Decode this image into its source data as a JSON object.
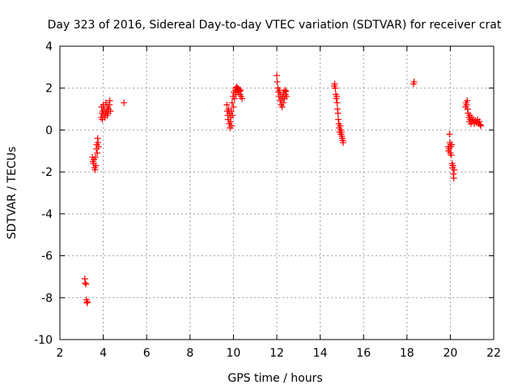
{
  "chart_data": {
    "type": "scatter",
    "title": "Day 323 of 2016, Sidereal Day-to-day VTEC variation (SDTVAR) for receiver crat",
    "xlabel": "GPS time / hours",
    "ylabel": "SDTVAR / TECUs",
    "xlim": [
      2,
      22
    ],
    "ylim": [
      -10,
      4
    ],
    "xticks": [
      2,
      4,
      6,
      8,
      10,
      12,
      14,
      16,
      18,
      20,
      22
    ],
    "yticks": [
      -10,
      -8,
      -6,
      -4,
      -2,
      0,
      2,
      4
    ],
    "grid": true,
    "marker": "+",
    "series": [
      {
        "name": "SDTVAR",
        "color": "#ff0000",
        "points": [
          [
            3.15,
            -7.1
          ],
          [
            3.17,
            -7.3
          ],
          [
            3.2,
            -7.35
          ],
          [
            3.22,
            -8.1
          ],
          [
            3.25,
            -8.25
          ],
          [
            3.27,
            -8.2
          ],
          [
            3.5,
            -1.3
          ],
          [
            3.52,
            -1.5
          ],
          [
            3.55,
            -1.6
          ],
          [
            3.57,
            -1.4
          ],
          [
            3.6,
            -1.8
          ],
          [
            3.62,
            -1.9
          ],
          [
            3.64,
            -1.3
          ],
          [
            3.66,
            -1.7
          ],
          [
            3.68,
            -0.9
          ],
          [
            3.7,
            -0.7
          ],
          [
            3.72,
            -1.1
          ],
          [
            3.74,
            -0.4
          ],
          [
            3.76,
            -0.6
          ],
          [
            3.78,
            -0.8
          ],
          [
            3.9,
            0.6
          ],
          [
            3.92,
            1.1
          ],
          [
            3.94,
            0.8
          ],
          [
            3.96,
            0.5
          ],
          [
            3.98,
            0.9
          ],
          [
            4.0,
            1.2
          ],
          [
            4.02,
            0.7
          ],
          [
            4.05,
            1.0
          ],
          [
            4.08,
            0.6
          ],
          [
            4.1,
            0.8
          ],
          [
            4.12,
            1.3
          ],
          [
            4.15,
            0.9
          ],
          [
            4.18,
            0.7
          ],
          [
            4.2,
            1.1
          ],
          [
            4.22,
            0.8
          ],
          [
            4.25,
            1.0
          ],
          [
            4.28,
            1.2
          ],
          [
            4.3,
            1.4
          ],
          [
            4.33,
            0.9
          ],
          [
            4.95,
            1.3
          ],
          [
            9.7,
            1.2
          ],
          [
            9.72,
            0.9
          ],
          [
            9.74,
            0.7
          ],
          [
            9.76,
            0.5
          ],
          [
            9.78,
            1.0
          ],
          [
            9.8,
            0.3
          ],
          [
            9.82,
            0.8
          ],
          [
            9.84,
            0.1
          ],
          [
            9.86,
            0.4
          ],
          [
            9.88,
            0.6
          ],
          [
            9.9,
            0.9
          ],
          [
            9.92,
            0.2
          ],
          [
            9.94,
            1.3
          ],
          [
            9.96,
            0.7
          ],
          [
            9.98,
            1.6
          ],
          [
            10.0,
            1.1
          ],
          [
            10.02,
            1.8
          ],
          [
            10.05,
            1.5
          ],
          [
            10.08,
            1.9
          ],
          [
            10.1,
            2.0
          ],
          [
            10.12,
            1.7
          ],
          [
            10.15,
            2.05
          ],
          [
            10.18,
            1.9
          ],
          [
            10.2,
            2.0
          ],
          [
            10.22,
            1.8
          ],
          [
            10.25,
            1.95
          ],
          [
            10.28,
            1.85
          ],
          [
            10.3,
            1.7
          ],
          [
            10.33,
            1.9
          ],
          [
            10.36,
            1.6
          ],
          [
            10.4,
            1.5
          ],
          [
            12.0,
            2.6
          ],
          [
            12.02,
            2.3
          ],
          [
            12.05,
            2.0
          ],
          [
            12.08,
            1.8
          ],
          [
            12.1,
            1.6
          ],
          [
            12.12,
            1.9
          ],
          [
            12.15,
            1.4
          ],
          [
            12.18,
            1.7
          ],
          [
            12.2,
            1.2
          ],
          [
            12.22,
            1.5
          ],
          [
            12.25,
            1.1
          ],
          [
            12.28,
            1.6
          ],
          [
            12.3,
            1.3
          ],
          [
            12.32,
            1.8
          ],
          [
            12.35,
            1.5
          ],
          [
            12.38,
            1.9
          ],
          [
            12.4,
            1.7
          ],
          [
            12.42,
            1.85
          ],
          [
            12.45,
            1.6
          ],
          [
            14.65,
            2.1
          ],
          [
            14.67,
            2.2
          ],
          [
            14.7,
            2.0
          ],
          [
            14.72,
            1.7
          ],
          [
            14.74,
            1.5
          ],
          [
            14.76,
            1.6
          ],
          [
            14.78,
            1.3
          ],
          [
            14.8,
            1.0
          ],
          [
            14.82,
            0.8
          ],
          [
            14.84,
            0.5
          ],
          [
            14.86,
            0.3
          ],
          [
            14.88,
            0.1
          ],
          [
            14.9,
            -0.1
          ],
          [
            14.92,
            0.2
          ],
          [
            14.94,
            0.0
          ],
          [
            14.96,
            -0.2
          ],
          [
            14.98,
            -0.1
          ],
          [
            15.0,
            -0.3
          ],
          [
            15.02,
            -0.4
          ],
          [
            15.04,
            -0.5
          ],
          [
            15.06,
            -0.6
          ],
          [
            18.3,
            2.2
          ],
          [
            18.33,
            2.3
          ],
          [
            19.9,
            -0.8
          ],
          [
            19.92,
            -1.0
          ],
          [
            19.94,
            -0.9
          ],
          [
            19.96,
            -0.2
          ],
          [
            19.98,
            -0.6
          ],
          [
            20.0,
            -1.1
          ],
          [
            20.02,
            -0.8
          ],
          [
            20.04,
            -1.2
          ],
          [
            20.06,
            -0.7
          ],
          [
            20.08,
            -1.6
          ],
          [
            20.1,
            -1.8
          ],
          [
            20.12,
            -1.7
          ],
          [
            20.14,
            -2.1
          ],
          [
            20.16,
            -2.3
          ],
          [
            20.18,
            -1.9
          ],
          [
            20.7,
            1.1
          ],
          [
            20.72,
            1.3
          ],
          [
            20.75,
            1.2
          ],
          [
            20.78,
            1.4
          ],
          [
            20.8,
            1.0
          ],
          [
            20.82,
            0.8
          ],
          [
            20.85,
            0.6
          ],
          [
            20.88,
            0.4
          ],
          [
            20.9,
            0.7
          ],
          [
            20.92,
            0.5
          ],
          [
            20.95,
            0.3
          ],
          [
            20.98,
            0.6
          ],
          [
            21.0,
            0.4
          ],
          [
            21.05,
            0.5
          ],
          [
            21.1,
            0.3
          ],
          [
            21.15,
            0.45
          ],
          [
            21.2,
            0.35
          ],
          [
            21.25,
            0.5
          ],
          [
            21.3,
            0.3
          ],
          [
            21.35,
            0.4
          ],
          [
            21.38,
            0.25
          ],
          [
            21.4,
            0.2
          ]
        ]
      }
    ]
  }
}
